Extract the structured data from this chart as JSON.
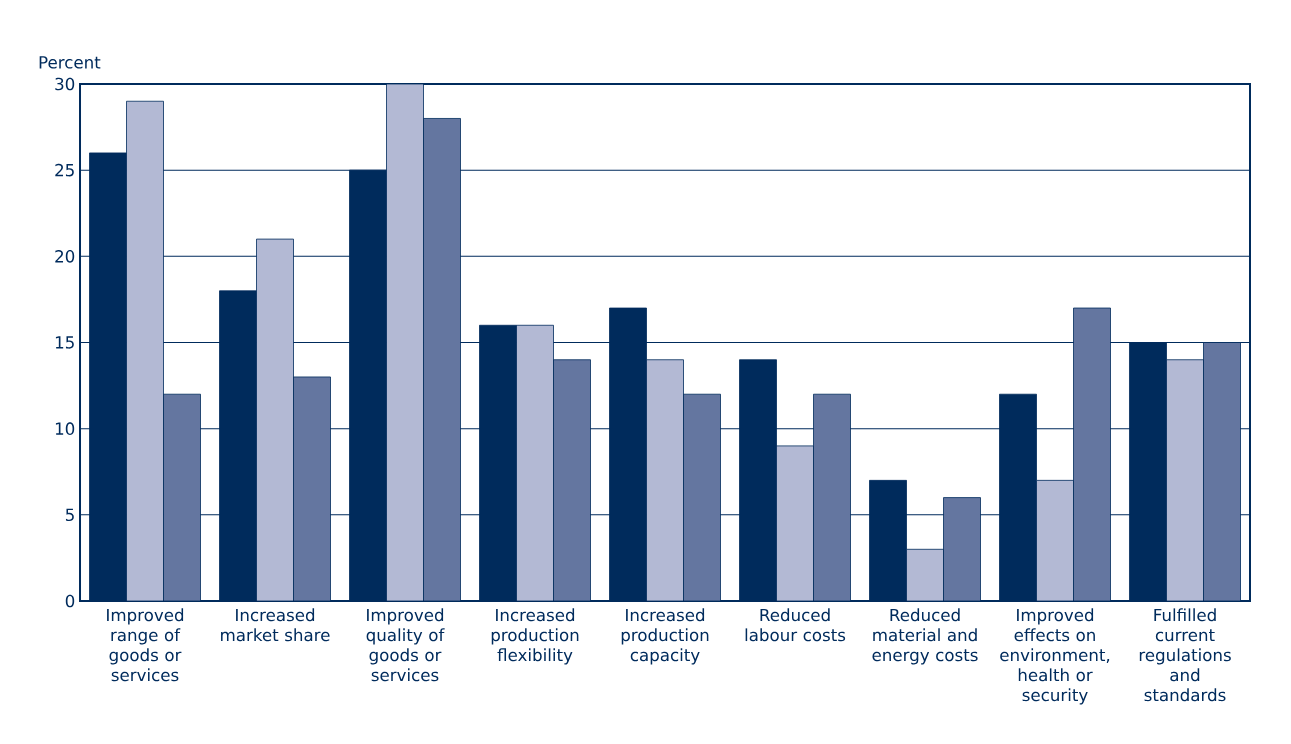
{
  "chart_data": {
    "type": "bar",
    "ylabel": "Percent",
    "categories": [
      "Improved range of goods or services",
      "Increased market share",
      "Improved quality of goods or services",
      "Increased production flexibility",
      "Increased production capacity",
      "Reduced labour costs",
      "Reduced material and energy costs",
      "Improved effects on environment, health or security",
      "Fulfilled current regulations and standards"
    ],
    "series": [
      {
        "color": "#002b5c",
        "values": [
          26,
          18,
          25,
          16,
          17,
          14,
          7,
          12,
          15
        ]
      },
      {
        "color": "#b3b9d4",
        "values": [
          29,
          21,
          30,
          16,
          14,
          9,
          3,
          7,
          14
        ]
      },
      {
        "color": "#6476a0",
        "values": [
          12,
          13,
          28,
          14,
          12,
          12,
          6,
          17,
          15
        ]
      }
    ],
    "ylim": [
      0,
      30
    ],
    "yticks": [
      0,
      5,
      10,
      15,
      20,
      25,
      30
    ],
    "grid": "y"
  }
}
